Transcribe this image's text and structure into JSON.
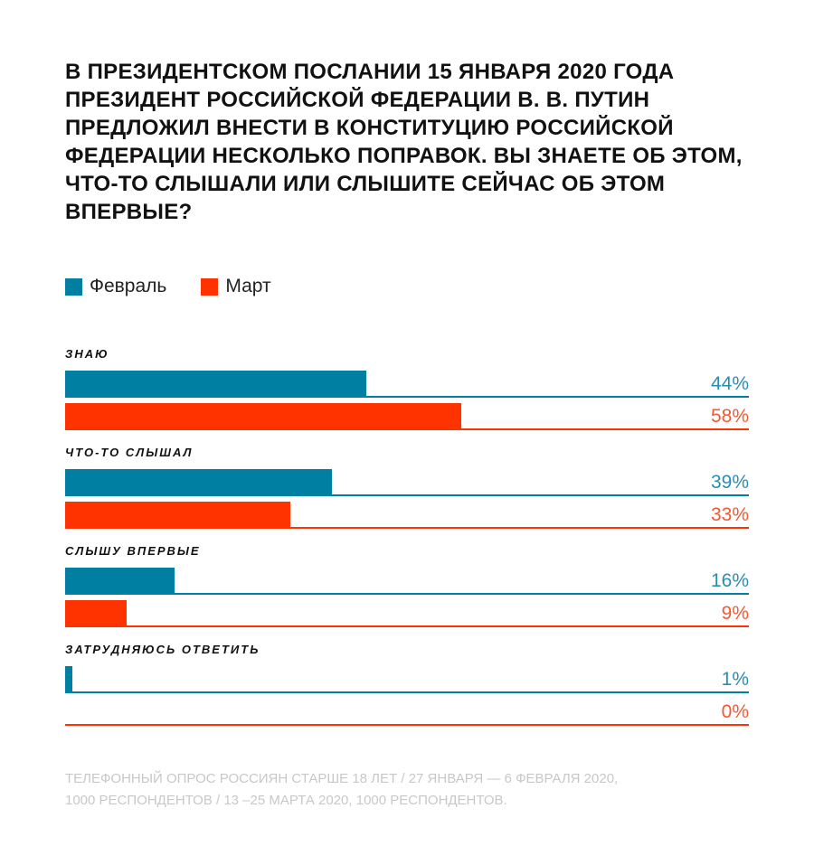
{
  "title": "В ПРЕЗИДЕНТСКОМ ПОСЛАНИИ 15 ЯНВАРЯ 2020 ГОДА ПРЕЗИДЕНТ РОССИЙСКОЙ ФЕДЕРАЦИИ В. В. ПУТИН ПРЕДЛОЖИЛ ВНЕСТИ В КОНСТИТУЦИЮ РОССИЙСКОЙ ФЕДЕРАЦИИ НЕСКОЛЬКО ПОПРАВОК. ВЫ ЗНАЕТЕ ОБ ЭТОМ, ЧТО-ТО СЛЫШАЛИ ИЛИ СЛЫШИТЕ СЕЙЧАС ОБ ЭТОМ ВПЕРВЫЕ?",
  "footer": [
    "ТЕЛЕФОННЫЙ ОПРОС РОССИЯН СТАРШЕ 18 ЛЕТ / 27 ЯНВАРЯ — 6 ФЕВРАЛЯ 2020,",
    "1000 РЕСПОНДЕНТОВ / 13 –25 МАРТА 2020, 1000 РЕСПОНДЕНТОВ."
  ],
  "chart_data": {
    "type": "bar",
    "orientation": "horizontal",
    "title": "В ПРЕЗИДЕНТСКОМ ПОСЛАНИИ 15 ЯНВАРЯ 2020 ГОДА ... ВПЕРВЫЕ?",
    "categories": [
      "ЗНАЮ",
      "ЧТО-ТО СЛЫШАЛ",
      "СЛЫШУ ВПЕРВЫЕ",
      "ЗАТРУДНЯЮСЬ ОТВЕТИТЬ"
    ],
    "series": [
      {
        "name": "Февраль",
        "color": "#007fa3",
        "label_color": "#2b8db0",
        "values": [
          44,
          39,
          16,
          1
        ],
        "labels": [
          "44%",
          "39%",
          "16%",
          "1%"
        ]
      },
      {
        "name": "Март",
        "color": "#ff3300",
        "label_color": "#f05a32",
        "values": [
          58,
          33,
          9,
          0
        ],
        "labels": [
          "58%",
          "33%",
          "9%",
          "0%"
        ]
      }
    ],
    "xlim": [
      0,
      100
    ],
    "legend": "top-left"
  }
}
